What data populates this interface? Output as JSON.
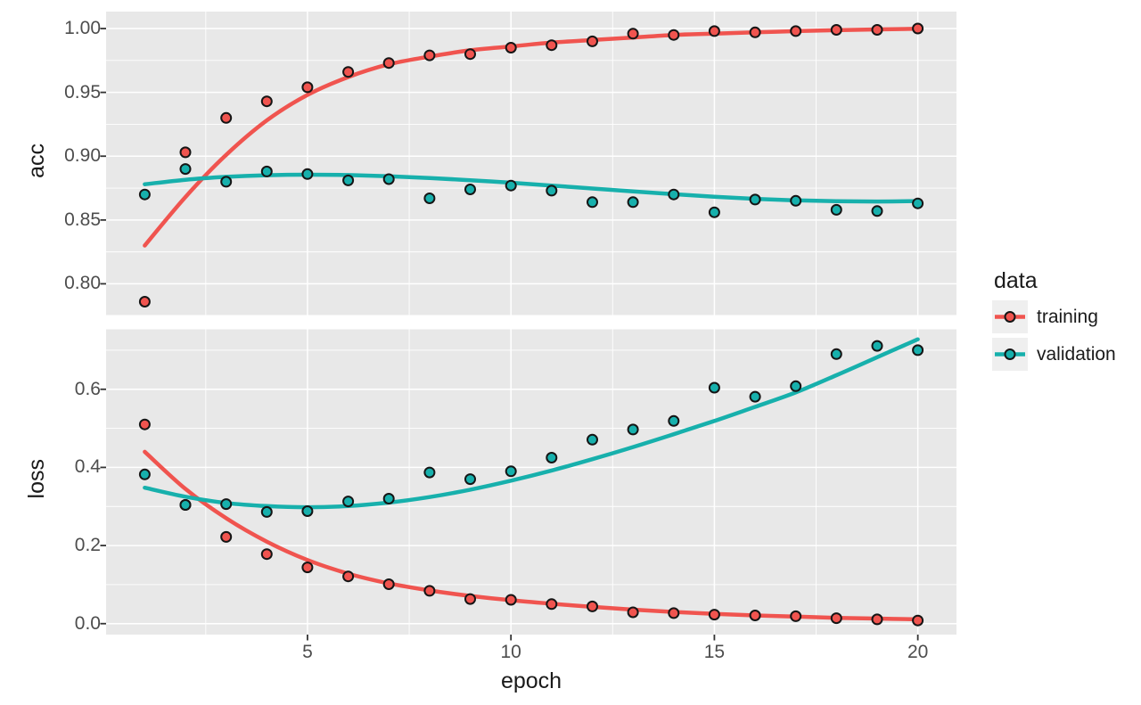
{
  "figure": {
    "background": "#FFFFFF",
    "panel_background": "#E8E8E8",
    "grid_color": "#FFFFFF",
    "axis_tick_color": "#333333",
    "tick_label_color": "#4D4D4D",
    "axis_title_color": "#1A1A1A",
    "point_outline_color": "#151515"
  },
  "xaxis": {
    "label": "epoch",
    "lim": [
      0.05,
      20.95
    ],
    "ticks": [
      5,
      10,
      15,
      20
    ],
    "tick_labels": [
      "5",
      "10",
      "15",
      "20"
    ],
    "minor_ticks": [
      2.5,
      7.5,
      12.5,
      17.5
    ]
  },
  "legend": {
    "title": "data",
    "key_background": "#EFEFEF",
    "items": [
      {
        "label": "training",
        "color": "#F0544F"
      },
      {
        "label": "validation",
        "color": "#17B0AC"
      }
    ]
  },
  "chart_data": [
    {
      "type": "scatter",
      "metric": "acc",
      "ylabel": "acc",
      "x": [
        1,
        2,
        3,
        4,
        5,
        6,
        7,
        8,
        9,
        10,
        11,
        12,
        13,
        14,
        15,
        16,
        17,
        18,
        19,
        20
      ],
      "ylim": [
        0.7755,
        1.0133
      ],
      "yticks": [
        0.8,
        0.85,
        0.9,
        0.95,
        1.0
      ],
      "ytick_labels": [
        "0.80",
        "0.85",
        "0.90",
        "0.95",
        "1.00"
      ],
      "yticks_minor": [
        0.825,
        0.875,
        0.925,
        0.975
      ],
      "series": [
        {
          "name": "training",
          "color": "#F0544F",
          "points": [
            0.786,
            0.903,
            0.93,
            0.943,
            0.954,
            0.966,
            0.973,
            0.979,
            0.98,
            0.985,
            0.987,
            0.99,
            0.996,
            0.995,
            0.998,
            0.997,
            0.998,
            0.999,
            0.999,
            1.0
          ],
          "smooth": [
            0.83,
            0.868,
            0.901,
            0.928,
            0.948,
            0.962,
            0.972,
            0.978,
            0.983,
            0.986,
            0.989,
            0.991,
            0.993,
            0.995,
            0.996,
            0.997,
            0.998,
            0.9987,
            0.9993,
            0.9998
          ]
        },
        {
          "name": "validation",
          "color": "#17B0AC",
          "points": [
            0.87,
            0.89,
            0.88,
            0.888,
            0.886,
            0.881,
            0.882,
            0.867,
            0.874,
            0.877,
            0.873,
            0.864,
            0.864,
            0.87,
            0.856,
            0.866,
            0.865,
            0.858,
            0.857,
            0.863
          ],
          "smooth": [
            0.878,
            0.8815,
            0.8838,
            0.8851,
            0.8855,
            0.8852,
            0.8843,
            0.8829,
            0.8812,
            0.8792,
            0.877,
            0.8747,
            0.8724,
            0.8702,
            0.8682,
            0.8666,
            0.8654,
            0.8647,
            0.8645,
            0.8648
          ]
        }
      ]
    },
    {
      "type": "scatter",
      "metric": "loss",
      "ylabel": "loss",
      "x": [
        1,
        2,
        3,
        4,
        5,
        6,
        7,
        8,
        9,
        10,
        11,
        12,
        13,
        14,
        15,
        16,
        17,
        18,
        19,
        20
      ],
      "ylim": [
        -0.028,
        0.7535
      ],
      "yticks": [
        0.0,
        0.2,
        0.4,
        0.6
      ],
      "ytick_labels": [
        "0.0",
        "0.2",
        "0.4",
        "0.6"
      ],
      "yticks_minor": [
        0.1,
        0.3,
        0.5,
        0.7
      ],
      "series": [
        {
          "name": "training",
          "color": "#F0544F",
          "points": [
            0.51,
            0.304,
            0.222,
            0.178,
            0.144,
            0.121,
            0.101,
            0.084,
            0.063,
            0.061,
            0.05,
            0.044,
            0.029,
            0.027,
            0.023,
            0.021,
            0.019,
            0.014,
            0.011,
            0.008
          ],
          "smooth": [
            0.44,
            0.345,
            0.27,
            0.21,
            0.163,
            0.128,
            0.103,
            0.085,
            0.071,
            0.06,
            0.051,
            0.043,
            0.036,
            0.03,
            0.025,
            0.021,
            0.018,
            0.015,
            0.013,
            0.011
          ]
        },
        {
          "name": "validation",
          "color": "#17B0AC",
          "points": [
            0.382,
            0.304,
            0.306,
            0.286,
            0.288,
            0.313,
            0.32,
            0.387,
            0.37,
            0.39,
            0.425,
            0.471,
            0.497,
            0.519,
            0.604,
            0.581,
            0.608,
            0.69,
            0.711,
            0.7
          ],
          "smooth": [
            0.348,
            0.325,
            0.309,
            0.301,
            0.298,
            0.301,
            0.31,
            0.324,
            0.343,
            0.366,
            0.392,
            0.421,
            0.452,
            0.485,
            0.519,
            0.555,
            0.592,
            0.636,
            0.682,
            0.728
          ]
        }
      ]
    }
  ]
}
